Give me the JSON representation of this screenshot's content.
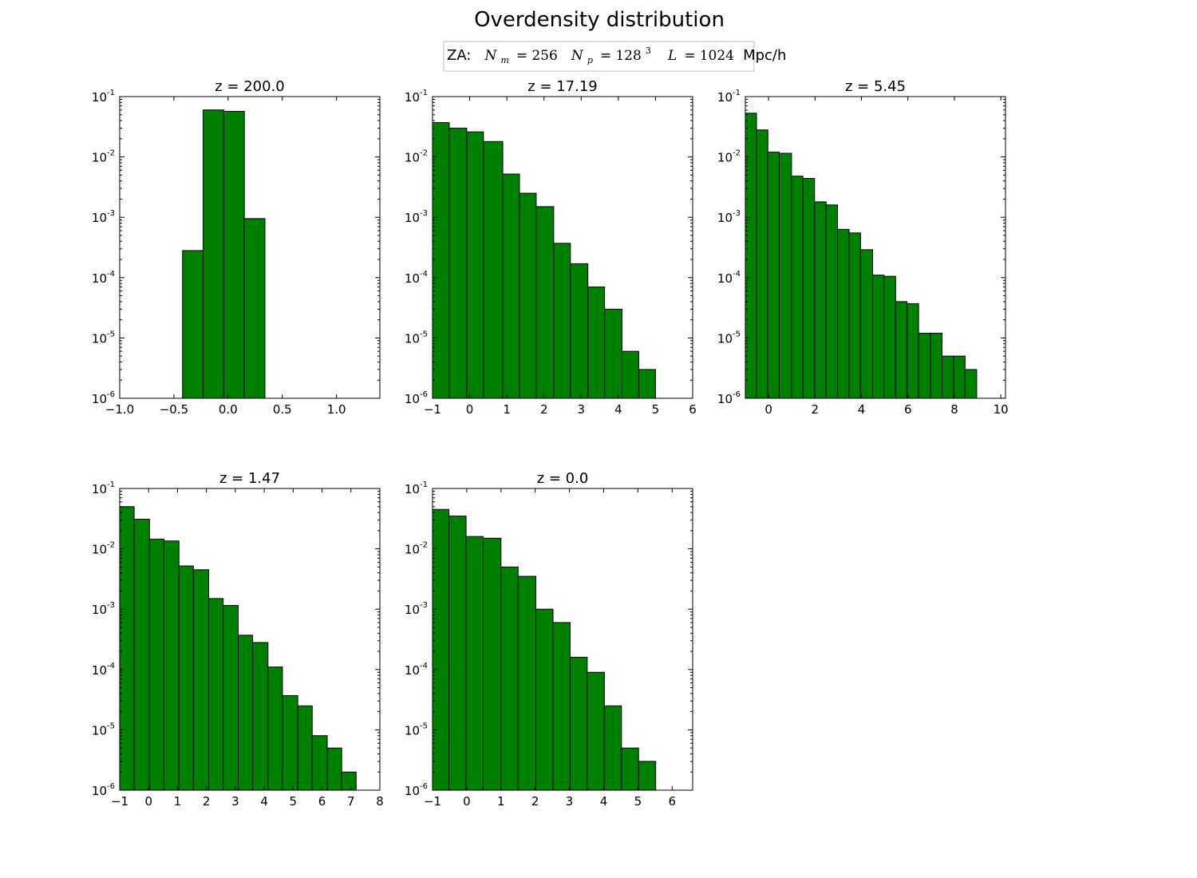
{
  "figure": {
    "title": "Overdensity distribution",
    "legend": {
      "prefix": "ZA:",
      "nm_symbol": "N",
      "nm_sub": "m",
      "nm_value": "256",
      "np_symbol": "N",
      "np_sub": "p",
      "np_base": "128",
      "np_exp": "3",
      "l_symbol": "L",
      "l_value": "1024",
      "l_unit": "Mpc/h"
    },
    "bar_color": "#008000",
    "edge_color": "#000000"
  },
  "chart_data": [
    {
      "type": "bar",
      "title": "z = 200.0",
      "yscale": "log",
      "xlim": [
        -1.0,
        1.4
      ],
      "ylim": [
        1e-06,
        0.1
      ],
      "xticks": [
        -1.0,
        -0.5,
        0.0,
        0.5,
        1.0
      ],
      "xtick_labels": [
        "−1.0",
        "−0.5",
        "0.0",
        "0.5",
        "1.0"
      ],
      "yticks": [
        -6,
        -5,
        -4,
        -3,
        -2,
        -1
      ],
      "bin_edges": [
        -0.42,
        -0.23,
        -0.04,
        0.15,
        0.34
      ],
      "values": [
        0.00028,
        0.06,
        0.057,
        0.00095
      ]
    },
    {
      "type": "bar",
      "title": "z = 17.19",
      "yscale": "log",
      "xlim": [
        -1,
        6
      ],
      "ylim": [
        1e-06,
        0.1
      ],
      "xticks": [
        -1,
        0,
        1,
        2,
        3,
        4,
        5,
        6
      ],
      "xtick_labels": [
        "−1",
        "0",
        "1",
        "2",
        "3",
        "4",
        "5",
        "6"
      ],
      "yticks": [
        -6,
        -5,
        -4,
        -3,
        -2,
        -1
      ],
      "bin_edges": [
        -1.0,
        -0.55,
        -0.08,
        0.37,
        0.89,
        1.34,
        1.79,
        2.26,
        2.71,
        3.18,
        3.63,
        4.1,
        4.55,
        5.0
      ],
      "values": [
        0.037,
        0.03,
        0.026,
        0.018,
        0.0052,
        0.0025,
        0.0015,
        0.00037,
        0.00017,
        7e-05,
        3e-05,
        6e-06,
        3e-06
      ]
    },
    {
      "type": "bar",
      "title": "z = 5.45",
      "yscale": "log",
      "xlim": [
        -1,
        10.2
      ],
      "ylim": [
        1e-06,
        0.1
      ],
      "xticks": [
        0,
        2,
        4,
        6,
        8,
        10
      ],
      "xtick_labels": [
        "0",
        "2",
        "4",
        "6",
        "8",
        "10"
      ],
      "yticks": [
        -6,
        -5,
        -4,
        -3,
        -2,
        -1
      ],
      "bin_edges": [
        -1.0,
        -0.52,
        -0.03,
        0.46,
        0.99,
        1.48,
        1.98,
        2.48,
        2.97,
        3.47,
        3.96,
        4.48,
        4.97,
        5.47,
        5.96,
        6.46,
        6.98,
        7.47,
        7.97,
        8.46,
        8.96
      ],
      "values": [
        0.053,
        0.028,
        0.012,
        0.0115,
        0.0048,
        0.0044,
        0.0018,
        0.0016,
        0.00063,
        0.00055,
        0.00029,
        0.00011,
        0.000105,
        4e-05,
        3.7e-05,
        1.2e-05,
        1.2e-05,
        5e-06,
        5e-06,
        3e-06
      ]
    },
    {
      "type": "bar",
      "title": "z = 1.47",
      "yscale": "log",
      "xlim": [
        -1,
        8
      ],
      "ylim": [
        1e-06,
        0.1
      ],
      "xticks": [
        -1,
        0,
        1,
        2,
        3,
        4,
        5,
        6,
        7,
        8
      ],
      "xtick_labels": [
        "−1",
        "0",
        "1",
        "2",
        "3",
        "4",
        "5",
        "6",
        "7",
        "8"
      ],
      "yticks": [
        -6,
        -5,
        -4,
        -3,
        -2,
        -1
      ],
      "bin_edges": [
        -1.0,
        -0.5,
        0.03,
        0.53,
        1.05,
        1.55,
        2.08,
        2.58,
        3.1,
        3.6,
        4.13,
        4.63,
        5.16,
        5.66,
        6.18,
        6.68,
        7.18
      ],
      "values": [
        0.05,
        0.031,
        0.0145,
        0.0135,
        0.0052,
        0.0045,
        0.0015,
        0.00115,
        0.00037,
        0.00028,
        0.00011,
        3.7e-05,
        2.5e-05,
        8e-06,
        5e-06,
        2e-06
      ]
    },
    {
      "type": "bar",
      "title": "z = 0.0",
      "yscale": "log",
      "xlim": [
        -1,
        6.6
      ],
      "ylim": [
        1e-06,
        0.1
      ],
      "xticks": [
        -1,
        0,
        1,
        2,
        3,
        4,
        5,
        6
      ],
      "xtick_labels": [
        "−1",
        "0",
        "1",
        "2",
        "3",
        "4",
        "5",
        "6"
      ],
      "yticks": [
        -6,
        -5,
        -4,
        -3,
        -2,
        -1
      ],
      "bin_edges": [
        -1.0,
        -0.52,
        -0.02,
        0.48,
        1.0,
        1.5,
        2.02,
        2.52,
        3.02,
        3.52,
        4.02,
        4.52,
        5.02,
        5.52
      ],
      "values": [
        0.045,
        0.035,
        0.016,
        0.015,
        0.005,
        0.0035,
        0.001,
        0.0006,
        0.00016,
        9e-05,
        2.5e-05,
        5e-06,
        3e-06
      ]
    }
  ]
}
